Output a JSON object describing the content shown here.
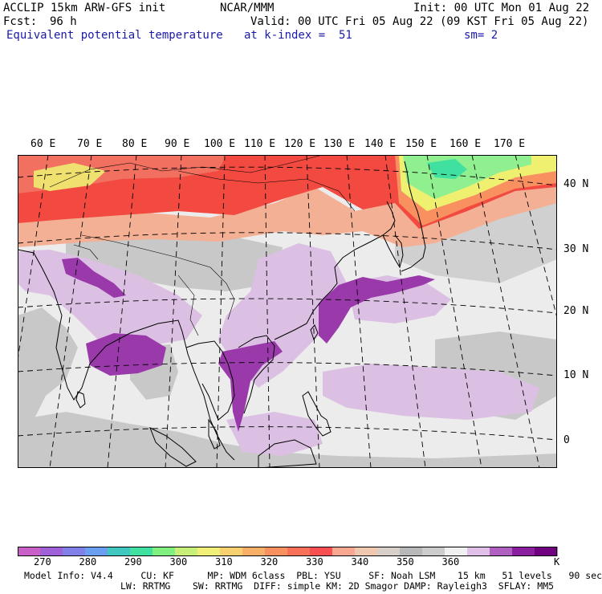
{
  "header": {
    "model": "ACCLIP 15km ARW-GFS init",
    "org": "NCAR/MMM",
    "init": "Init: 00 UTC Mon 01 Aug 22",
    "fcst_label": "Fcst:",
    "fcst_value": "96 h",
    "valid": "Valid: 00 UTC Fri 05 Aug 22 (09 KST Fri 05 Aug 22)",
    "field": "Equivalent potential temperature",
    "level": "at k-index =  51",
    "smoothing": "sm= 2"
  },
  "longitude_labels": [
    "60 E",
    "70 E",
    "80 E",
    "90 E",
    "100 E",
    "110 E",
    "120 E",
    "130 E",
    "140 E",
    "150 E",
    "160 E",
    "170 E"
  ],
  "latitude_labels": [
    "40 N",
    "30 N",
    "20 N",
    "10 N",
    "0"
  ],
  "colorbar": {
    "unit": "K",
    "labels": [
      "270",
      "280",
      "290",
      "300",
      "310",
      "320",
      "330",
      "340",
      "350",
      "360"
    ],
    "colors": [
      "#c860c8",
      "#a060d8",
      "#8080e8",
      "#6a9ef0",
      "#40c8c0",
      "#40e0a0",
      "#80f080",
      "#c8f078",
      "#f0f078",
      "#f8d070",
      "#f8b068",
      "#f89060",
      "#f87058",
      "#f85050",
      "#f8a890",
      "#f0c8b0",
      "#d8d0c8",
      "#b8b8b8",
      "#cccccc",
      "#f0f0f0",
      "#e0c0e8",
      "#b060c0",
      "#8a20a0",
      "#700080"
    ]
  },
  "footer": {
    "line1": "Model Info: V4.4     CU: KF      MP: WDM 6class  PBL: YSU     SF: Noah LSM    15 km   51 levels   90 sec",
    "line2": "LW: RRTMG    SW: RRTMG  DIFF: simple KM: 2D Smagor DAMP: Rayleigh3  SFLAY: MM5"
  },
  "map_colors": {
    "background": "#ececec",
    "gray": "#c8c8c8",
    "lavender": "#dcc0e4",
    "purple": "#9a3aaa",
    "peach": "#f4b094",
    "salmon": "#f27060",
    "red": "#f24a40",
    "orange": "#f89060",
    "yellow": "#f0f070",
    "lightgreen": "#90f090",
    "green": "#40e0a0",
    "coast": "#000000",
    "grid": "#000000"
  }
}
